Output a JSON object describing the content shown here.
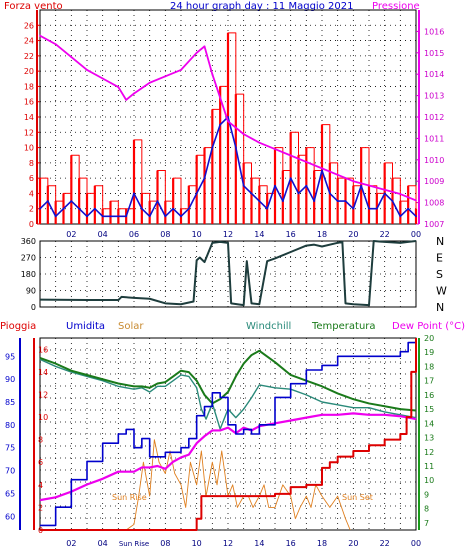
{
  "header": {
    "left_label": "Forza vento",
    "title": "24 hour graph day : 11 Maggio 2021",
    "right_label": "Pressione"
  },
  "legend_row": {
    "pioggia": "Pioggia",
    "umidita": "Umidita",
    "solar": "Solar",
    "windchill": "Windchill",
    "temperatura": "Temperatura",
    "dewpoint": "Dew Point (°C)"
  },
  "colors": {
    "wind_gust": "#ff0000",
    "wind_avg": "#1010d0",
    "pressure": "#ee00ee",
    "direction": "#1e3d3d",
    "rain": "#dd0000",
    "humidity": "#0000cc",
    "solar": "#e08020",
    "windchill": "#2a8a7a",
    "temperature": "#1a7a1a",
    "dewpoint": "#ee00ee",
    "grid": "#000000",
    "frame": "#000000"
  },
  "chart_data": [
    {
      "type": "line",
      "name": "wind-pressure",
      "xlabel": "",
      "ylabel": "Forza vento",
      "y2label": "Pressione",
      "x_ticks": [
        "02",
        "04",
        "06",
        "08",
        "10",
        "12",
        "14",
        "16",
        "18",
        "20",
        "22",
        "00"
      ],
      "xlim": [
        0,
        24
      ],
      "ylim": [
        0,
        28
      ],
      "y_ticks": [
        "0",
        "2",
        "4",
        "6",
        "8",
        "10",
        "12",
        "14",
        "16",
        "18",
        "20",
        "22",
        "24",
        "26"
      ],
      "y2lim": [
        1007,
        1017
      ],
      "y2_ticks": [
        "1007",
        "1008",
        "1009",
        "1010",
        "1011",
        "1012",
        "1013",
        "1014",
        "1015",
        "1016"
      ],
      "grid": true,
      "series": [
        {
          "key": "gust",
          "x": [
            0,
            0.5,
            1,
            1.5,
            2,
            2.5,
            3,
            3.5,
            4,
            4.5,
            5,
            5.5,
            6,
            6.5,
            7,
            7.5,
            8,
            8.5,
            9,
            9.5,
            10,
            10.5,
            11,
            11.5,
            12,
            12.5,
            13,
            13.5,
            14,
            14.5,
            15,
            15.5,
            16,
            16.5,
            17,
            17.5,
            18,
            18.5,
            19,
            19.5,
            20,
            20.5,
            21,
            21.5,
            22,
            22.5,
            23,
            23.5,
            24
          ],
          "values": [
            6,
            5,
            3,
            4,
            9,
            6,
            4,
            5,
            2,
            3,
            2,
            2,
            11,
            4,
            3,
            7,
            3,
            6,
            2,
            5,
            9,
            10,
            15,
            18,
            25,
            17,
            8,
            6,
            5,
            4,
            10,
            7,
            12,
            9,
            10,
            7,
            13,
            8,
            6,
            6,
            5,
            10,
            5,
            4,
            8,
            6,
            3,
            5,
            2
          ]
        },
        {
          "key": "avg",
          "x": [
            0,
            0.5,
            1,
            1.5,
            2,
            2.5,
            3,
            3.5,
            4,
            4.5,
            5,
            5.5,
            6,
            6.5,
            7,
            7.5,
            8,
            8.5,
            9,
            9.5,
            10,
            10.5,
            11,
            11.5,
            12,
            12.5,
            13,
            13.5,
            14,
            14.5,
            15,
            15.5,
            16,
            16.5,
            17,
            17.5,
            18,
            18.5,
            19,
            19.5,
            20,
            20.5,
            21,
            21.5,
            22,
            22.5,
            23,
            23.5,
            24
          ],
          "values": [
            2,
            3,
            1,
            2,
            3,
            2,
            1,
            2,
            1,
            1,
            1,
            1,
            4,
            2,
            1,
            3,
            1,
            2,
            1,
            2,
            4,
            6,
            10,
            13,
            14,
            10,
            5,
            4,
            3,
            2,
            5,
            3,
            6,
            4,
            5,
            3,
            7,
            4,
            3,
            3,
            2,
            5,
            2,
            2,
            4,
            3,
            1,
            2,
            1
          ]
        },
        {
          "key": "pressure",
          "axis": "right",
          "x": [
            0,
            1,
            2,
            3,
            4,
            5,
            5.5,
            6,
            7,
            8,
            9,
            10,
            10.5,
            11,
            12,
            13,
            14,
            15,
            16,
            17,
            18,
            19,
            20,
            21,
            22,
            23,
            24
          ],
          "values": [
            1015.8,
            1015.4,
            1014.8,
            1014.2,
            1013.8,
            1013.4,
            1012.8,
            1013.1,
            1013.6,
            1013.9,
            1014.2,
            1015.0,
            1015.3,
            1014.0,
            1011.8,
            1011.2,
            1010.8,
            1010.5,
            1010.2,
            1009.9,
            1009.6,
            1009.3,
            1009.0,
            1008.8,
            1008.6,
            1008.4,
            1008.1
          ]
        }
      ]
    },
    {
      "type": "line",
      "name": "wind-direction",
      "xlim": [
        0,
        24
      ],
      "ylim": [
        0,
        360
      ],
      "y_ticks": [
        "0",
        "90",
        "180",
        "270",
        "360"
      ],
      "y2_ticks": [
        "N",
        "W",
        "S",
        "E",
        "N"
      ],
      "grid": true,
      "series": [
        {
          "key": "direction",
          "x": [
            0,
            3,
            5,
            5.2,
            6,
            7,
            8,
            9,
            9.8,
            10,
            10.2,
            10.5,
            11,
            11.5,
            12,
            12.2,
            13,
            13.2,
            13.5,
            14,
            14.5,
            15,
            16,
            17,
            17.5,
            18,
            19,
            19.3,
            19.5,
            20,
            21,
            21.3,
            22,
            23,
            23.5,
            24
          ],
          "values": [
            40,
            38,
            38,
            55,
            50,
            45,
            20,
            15,
            30,
            255,
            270,
            245,
            350,
            355,
            350,
            20,
            10,
            250,
            20,
            15,
            250,
            265,
            300,
            335,
            340,
            330,
            350,
            355,
            20,
            15,
            10,
            360,
            355,
            350,
            355,
            360
          ]
        }
      ]
    },
    {
      "type": "line",
      "name": "rain-humidity-temperature",
      "xlim": [
        0,
        24
      ],
      "ylim": [
        0,
        17
      ],
      "y_ticks": [
        "0",
        "2",
        "4",
        "6",
        "8",
        "10",
        "12",
        "14",
        "16"
      ],
      "y_humidity_ticks": [
        "60",
        "65",
        "70",
        "75",
        "80",
        "85",
        "90",
        "95"
      ],
      "y2lim": [
        6.5,
        20
      ],
      "y2_ticks": [
        "7",
        "8",
        "9",
        "10",
        "11",
        "12",
        "13",
        "14",
        "15",
        "16",
        "17",
        "18",
        "19",
        "20"
      ],
      "x_ticks": [
        "02",
        "04",
        "Sun Rise",
        "08",
        "10",
        "12",
        "14",
        "16",
        "18",
        "20",
        "22",
        "00"
      ],
      "annotations": [
        "Sun Rise",
        "Sun Set"
      ],
      "grid": true,
      "series": [
        {
          "key": "rain",
          "x": [
            0,
            1,
            2,
            3,
            4,
            5,
            6,
            7,
            8,
            9,
            9.8,
            10,
            10.3,
            11,
            12,
            13,
            14,
            15,
            16,
            17,
            18,
            18.5,
            19,
            20,
            21,
            22,
            23,
            23.4,
            23.7,
            24
          ],
          "values": [
            0,
            0,
            0,
            0,
            0,
            0,
            0,
            0,
            0,
            0,
            0,
            1,
            3,
            3,
            3,
            3,
            3,
            3.2,
            3.8,
            4,
            5.5,
            6,
            6.5,
            7,
            7.5,
            8,
            8.5,
            10,
            14,
            17
          ]
        },
        {
          "key": "humidity",
          "y_min": 57,
          "y_max": 99,
          "x": [
            0,
            0.6,
            1,
            2,
            3,
            4,
            5,
            5.5,
            6,
            6.5,
            7,
            8,
            9,
            9.5,
            10,
            10.5,
            11,
            11.5,
            12,
            12.5,
            13,
            13.5,
            14,
            15,
            16,
            17,
            18,
            19,
            20,
            21,
            22,
            23,
            23.5,
            24
          ],
          "values": [
            58,
            58,
            62,
            68,
            72,
            76,
            78,
            79,
            75,
            77,
            73,
            74,
            75,
            77,
            82,
            84,
            87,
            86,
            80,
            78,
            79,
            78,
            80,
            86,
            89,
            92,
            93,
            95,
            95,
            95,
            95,
            96,
            98,
            97
          ]
        },
        {
          "key": "solar",
          "x": [
            5.5,
            6,
            6.3,
            6.6,
            7,
            7.3,
            7.6,
            8,
            8.3,
            8.6,
            9,
            9.3,
            9.6,
            10,
            10.3,
            10.6,
            11,
            11.3,
            11.6,
            12,
            12.3,
            12.6,
            13,
            13.3,
            13.6,
            14,
            14.3,
            14.6,
            15,
            15.5,
            16,
            16.3,
            16.6,
            17,
            17.3,
            17.6,
            18,
            18.5,
            19,
            19.5,
            19.8
          ],
          "values": [
            0,
            0.5,
            3,
            6,
            3,
            8,
            6,
            5,
            7,
            5,
            4,
            2,
            6,
            4,
            7,
            3,
            6,
            4,
            7,
            3,
            4,
            2,
            3,
            3,
            2,
            3,
            4,
            2,
            2,
            4,
            3,
            1,
            2,
            3,
            2,
            4,
            3,
            2,
            3,
            1,
            0
          ]
        },
        {
          "key": "windchill",
          "axis": "right",
          "x": [
            0,
            1,
            2,
            3,
            4,
            5,
            6,
            6.5,
            7,
            7.5,
            8,
            8.5,
            9,
            9.5,
            10,
            10.3,
            10.6,
            11,
            11.5,
            12,
            12.5,
            13,
            13.5,
            14,
            15,
            16,
            17,
            18,
            19,
            20,
            21,
            22,
            23,
            24
          ],
          "values": [
            18.5,
            18.0,
            17.6,
            17.3,
            17.0,
            16.6,
            16.4,
            16.5,
            16.2,
            16.6,
            16.6,
            17.0,
            17.4,
            17.3,
            16.5,
            15.0,
            14.3,
            15.4,
            13.6,
            15.0,
            14.4,
            15.0,
            15.8,
            16.7,
            16.5,
            16.4,
            16.0,
            15.5,
            15.3,
            15.1,
            15.1,
            14.8,
            14.6,
            14.4
          ]
        },
        {
          "key": "temperature",
          "axis": "right",
          "x": [
            0,
            1,
            2,
            3,
            4,
            5,
            6,
            6.5,
            7,
            7.5,
            8,
            8.5,
            9,
            9.5,
            10,
            10.5,
            11,
            11.5,
            12,
            12.5,
            13,
            13.5,
            14,
            15,
            16,
            17,
            18,
            19,
            20,
            21,
            22,
            23,
            24
          ],
          "values": [
            18.6,
            18.2,
            17.7,
            17.4,
            17.1,
            16.8,
            16.6,
            16.6,
            16.5,
            16.8,
            16.9,
            17.3,
            17.7,
            17.6,
            17.0,
            16.0,
            15.4,
            15.7,
            16.2,
            17.3,
            18.2,
            18.8,
            19.1,
            18.3,
            17.4,
            17.0,
            16.6,
            16.1,
            15.7,
            15.4,
            15.2,
            15.0,
            14.9
          ]
        },
        {
          "key": "dewpoint",
          "axis": "right",
          "x": [
            0,
            1,
            2,
            3,
            4,
            5,
            6,
            6.5,
            7,
            7.5,
            8,
            8.5,
            9,
            9.5,
            10,
            10.5,
            11,
            11.5,
            12,
            12.5,
            13,
            13.5,
            14,
            15,
            16,
            17,
            18,
            19,
            20,
            21,
            22,
            23,
            24
          ],
          "values": [
            8.6,
            8.8,
            9.2,
            9.7,
            10.1,
            10.6,
            10.6,
            10.9,
            10.9,
            11.0,
            10.8,
            11.3,
            11.6,
            11.8,
            12.6,
            13.1,
            13.5,
            13.5,
            13.7,
            13.3,
            13.7,
            13.5,
            13.8,
            14.0,
            14.2,
            14.4,
            14.6,
            14.6,
            14.7,
            14.6,
            14.6,
            14.5,
            14.3
          ]
        }
      ]
    }
  ]
}
